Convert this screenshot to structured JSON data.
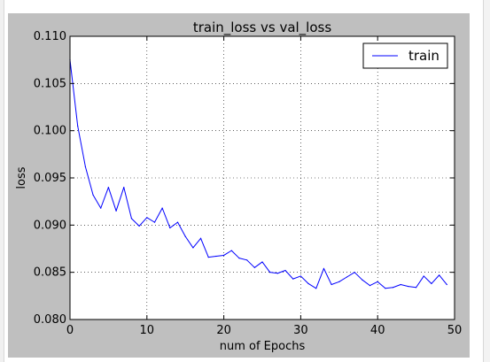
{
  "chart_data": {
    "type": "line",
    "title": "train_loss vs val_loss",
    "xlabel": "num of Epochs",
    "ylabel": "loss",
    "xlim": [
      0,
      50
    ],
    "ylim": [
      0.08,
      0.11
    ],
    "x_ticks": [
      "0",
      "10",
      "20",
      "30",
      "40",
      "50"
    ],
    "y_ticks": [
      "0.080",
      "0.085",
      "0.090",
      "0.095",
      "0.100",
      "0.105",
      "0.110"
    ],
    "grid": true,
    "grid_style": "dotted",
    "legend_position": "top-right",
    "series": [
      {
        "name": "train",
        "color": "#0000ff",
        "x": [
          0,
          1,
          2,
          3,
          4,
          5,
          6,
          7,
          8,
          9,
          10,
          11,
          12,
          13,
          14,
          15,
          16,
          17,
          18,
          19,
          20,
          21,
          22,
          23,
          24,
          25,
          26,
          27,
          28,
          29,
          30,
          31,
          32,
          33,
          34,
          35,
          36,
          37,
          38,
          39,
          40,
          41,
          42,
          43,
          44,
          45,
          46,
          47,
          48,
          49
        ],
        "values": [
          0.1075,
          0.1005,
          0.0962,
          0.0932,
          0.0918,
          0.094,
          0.0915,
          0.094,
          0.0907,
          0.0899,
          0.0908,
          0.0903,
          0.0918,
          0.0897,
          0.0903,
          0.0888,
          0.0876,
          0.0886,
          0.0866,
          0.0867,
          0.0868,
          0.0873,
          0.0865,
          0.0863,
          0.0855,
          0.0861,
          0.085,
          0.0849,
          0.0852,
          0.0843,
          0.0846,
          0.0838,
          0.0833,
          0.0854,
          0.0837,
          0.084,
          0.0845,
          0.085,
          0.0842,
          0.0836,
          0.084,
          0.0833,
          0.0834,
          0.0837,
          0.0835,
          0.0834,
          0.0846,
          0.0838,
          0.0847,
          0.0837
        ]
      }
    ]
  }
}
